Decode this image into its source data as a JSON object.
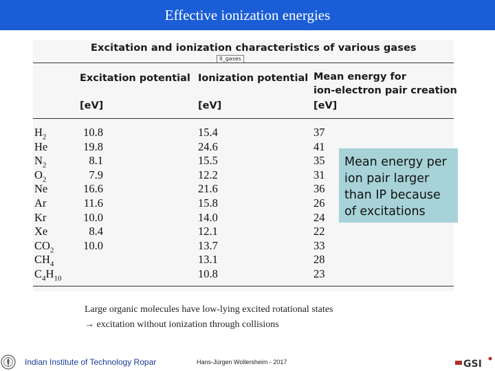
{
  "header": {
    "title": "Effective ionization energies"
  },
  "table": {
    "title": "Excitation and ionization characteristics of various gases",
    "tag": "II_gases",
    "columns": [
      {
        "label": "Excitation potential",
        "unit": "[eV]"
      },
      {
        "label": "Ionization potential",
        "unit": "[eV]"
      },
      {
        "label_line1": "Mean energy for",
        "label_line2": "ion-electron pair creation",
        "unit": "[eV]"
      }
    ],
    "rows": [
      {
        "gas": "H2",
        "gas_base": "H",
        "gas_sub": "2",
        "excitation": "10.8",
        "ionization": "15.4",
        "mean": "37"
      },
      {
        "gas": "He",
        "gas_base": "He",
        "gas_sub": "",
        "excitation": "19.8",
        "ionization": "24.6",
        "mean": "41"
      },
      {
        "gas": "N2",
        "gas_base": "N",
        "gas_sub": "2",
        "excitation": "8.1",
        "ionization": "15.5",
        "mean": "35"
      },
      {
        "gas": "O2",
        "gas_base": "O",
        "gas_sub": "2",
        "excitation": "7.9",
        "ionization": "12.2",
        "mean": "31"
      },
      {
        "gas": "Ne",
        "gas_base": "Ne",
        "gas_sub": "",
        "excitation": "16.6",
        "ionization": "21.6",
        "mean": "36"
      },
      {
        "gas": "Ar",
        "gas_base": "Ar",
        "gas_sub": "",
        "excitation": "11.6",
        "ionization": "15.8",
        "mean": "26"
      },
      {
        "gas": "Kr",
        "gas_base": "Kr",
        "gas_sub": "",
        "excitation": "10.0",
        "ionization": "14.0",
        "mean": "24"
      },
      {
        "gas": "Xe",
        "gas_base": "Xe",
        "gas_sub": "",
        "excitation": "8.4",
        "ionization": "12.1",
        "mean": "22"
      },
      {
        "gas": "CO2",
        "gas_base": "CO",
        "gas_sub": "2",
        "excitation": "10.0",
        "ionization": "13.7",
        "mean": "33"
      },
      {
        "gas": "CH4",
        "gas_base": "CH",
        "gas_sub": "4",
        "excitation": "",
        "ionization": "13.1",
        "mean": "28"
      },
      {
        "gas": "C4H10",
        "gas_base": "C",
        "gas_sub": "4",
        "gas_base2": "H",
        "gas_sub2": "10",
        "excitation": "",
        "ionization": "10.8",
        "mean": "23"
      }
    ]
  },
  "callout": {
    "text": "Mean energy per\nion pair larger\nthan IP because\nof excitations",
    "color": "#a7d3d8"
  },
  "note": {
    "line1": "Large organic molecules have low-lying excited rotational states",
    "line2": "→ excitation without ionization through collisions"
  },
  "footer": {
    "institute": "Indian Institute of Technology Ropar",
    "author": "Hans-Jürgen Wollersheim - 2017",
    "logo_right": "GSI"
  },
  "colors": {
    "title_bar": "#1a5dd6",
    "footer_text": "#1a3c98"
  }
}
